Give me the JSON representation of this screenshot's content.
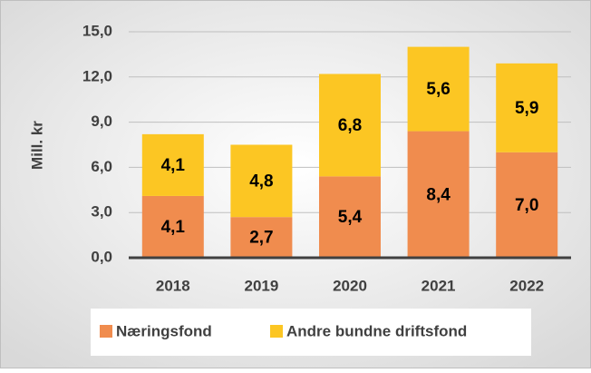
{
  "chart_data": {
    "type": "stacked_bar",
    "y_label": "Mill. kr",
    "categories": [
      "2018",
      "2019",
      "2020",
      "2021",
      "2022"
    ],
    "series": [
      {
        "name": "Næringsfond",
        "color": "#f08c4e",
        "values": [
          4.1,
          2.7,
          5.4,
          8.4,
          7.0
        ],
        "value_labels": [
          "4,1",
          "2,7",
          "5,4",
          "8,4",
          "7,0"
        ]
      },
      {
        "name": "Andre bundne driftsfond",
        "color": "#fcc623",
        "values": [
          4.1,
          4.8,
          6.8,
          5.6,
          5.9
        ],
        "value_labels": [
          "4,1",
          "4,8",
          "6,8",
          "5,6",
          "5,9"
        ]
      }
    ],
    "ylim": [
      0,
      15
    ],
    "yticks": [
      {
        "value": 0,
        "label": "0,0"
      },
      {
        "value": 3,
        "label": "3,0"
      },
      {
        "value": 6,
        "label": "6,0"
      },
      {
        "value": 9,
        "label": "9,0"
      },
      {
        "value": 12,
        "label": "12,0"
      },
      {
        "value": 15,
        "label": "15,0"
      }
    ],
    "grid": true,
    "legend": "bottom"
  }
}
